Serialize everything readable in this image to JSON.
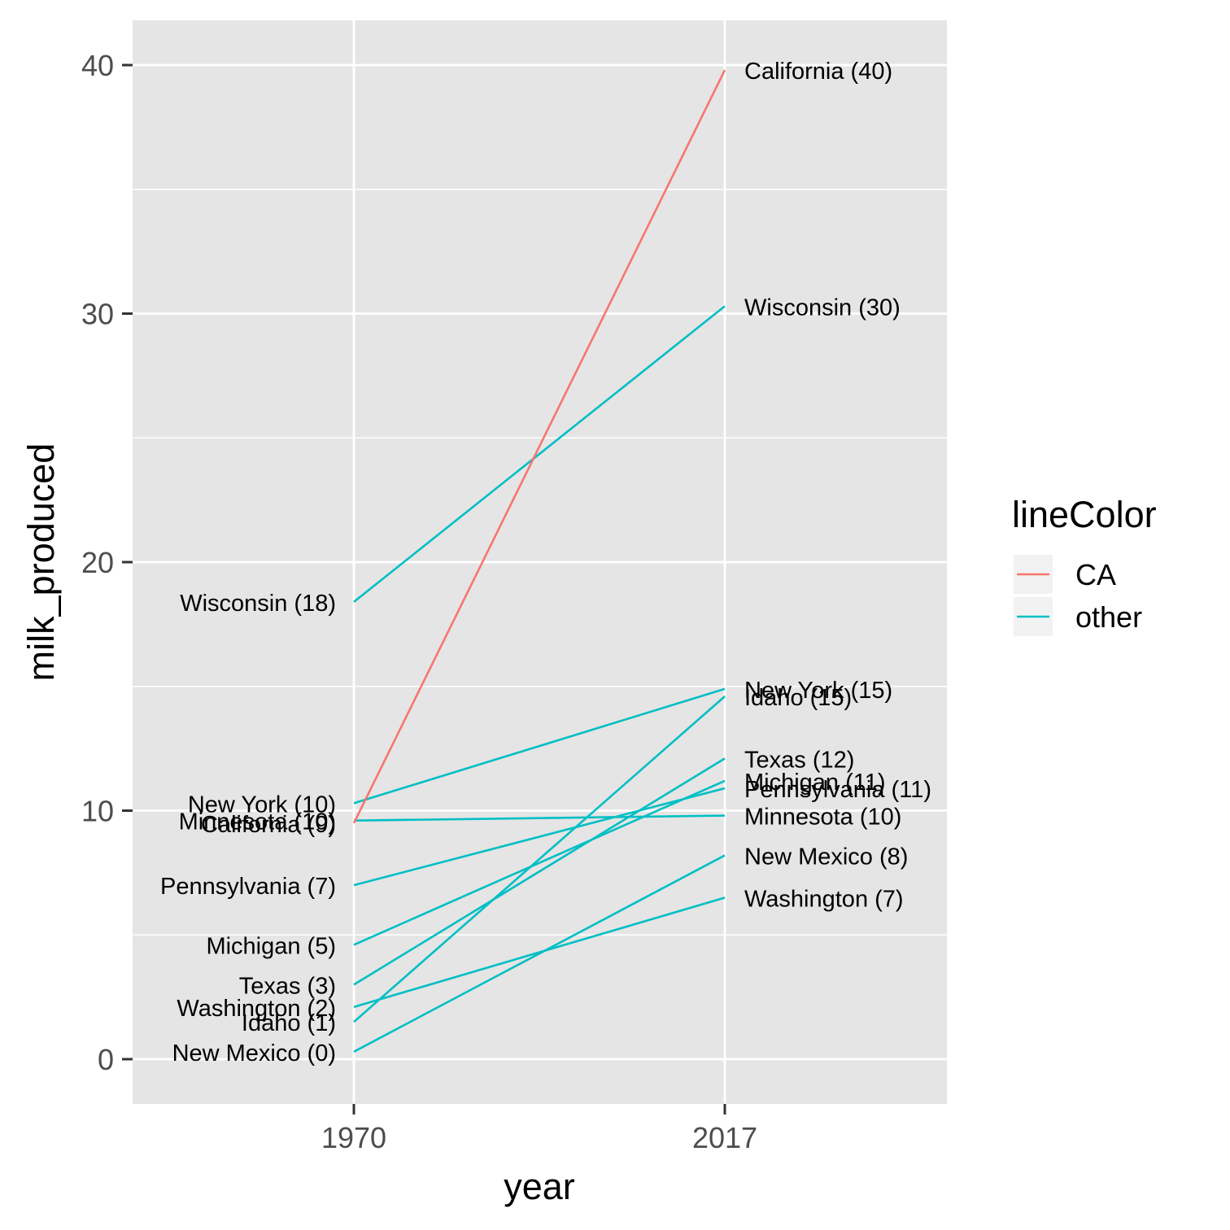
{
  "chart_data": {
    "type": "line",
    "subtype": "slope",
    "xlabel": "year",
    "ylabel": "milk_produced",
    "x": [
      1970,
      2017
    ],
    "x_tick_labels": [
      "1970",
      "2017"
    ],
    "ylim": [
      -1.8,
      41.8
    ],
    "y_ticks": [
      0,
      10,
      20,
      30,
      40
    ],
    "y_tick_labels": [
      "0",
      "10",
      "20",
      "30",
      "40"
    ],
    "panel_background": "#E5E5E5",
    "grid": true,
    "legend": {
      "title": "lineColor",
      "position": "right",
      "entries": [
        {
          "name": "CA",
          "color": "#F8766D"
        },
        {
          "name": "other",
          "color": "#00BFC4"
        }
      ]
    },
    "series": [
      {
        "name": "California",
        "group": "CA",
        "values": [
          9.5,
          39.8
        ],
        "label_start": "California (9)",
        "label_end": "California (40)"
      },
      {
        "name": "Wisconsin",
        "group": "other",
        "values": [
          18.4,
          30.3
        ],
        "label_start": "Wisconsin (18)",
        "label_end": "Wisconsin (30)"
      },
      {
        "name": "New York",
        "group": "other",
        "values": [
          10.3,
          14.9
        ],
        "label_start": "New York (10)",
        "label_end": "New York (15)"
      },
      {
        "name": "Idaho",
        "group": "other",
        "values": [
          1.5,
          14.6
        ],
        "label_start": "Idaho (1)",
        "label_end": "Idaho (15)"
      },
      {
        "name": "Texas",
        "group": "other",
        "values": [
          3.0,
          12.1
        ],
        "label_start": "Texas (3)",
        "label_end": "Texas (12)"
      },
      {
        "name": "Michigan",
        "group": "other",
        "values": [
          4.6,
          11.2
        ],
        "label_start": "Michigan (5)",
        "label_end": "Michigan (11)"
      },
      {
        "name": "Pennsylvania",
        "group": "other",
        "values": [
          7.0,
          10.9
        ],
        "label_start": "Pennsylvania (7)",
        "label_end": "Pennsylvania (11)"
      },
      {
        "name": "Minnesota",
        "group": "other",
        "values": [
          9.6,
          9.8
        ],
        "label_start": "Minnesota (10)",
        "label_end": "Minnesota (10)"
      },
      {
        "name": "New Mexico",
        "group": "other",
        "values": [
          0.3,
          8.2
        ],
        "label_start": "New Mexico (0)",
        "label_end": "New Mexico (8)"
      },
      {
        "name": "Washington",
        "group": "other",
        "values": [
          2.1,
          6.5
        ],
        "label_start": "Washington (2)",
        "label_end": "Washington (7)"
      }
    ]
  }
}
